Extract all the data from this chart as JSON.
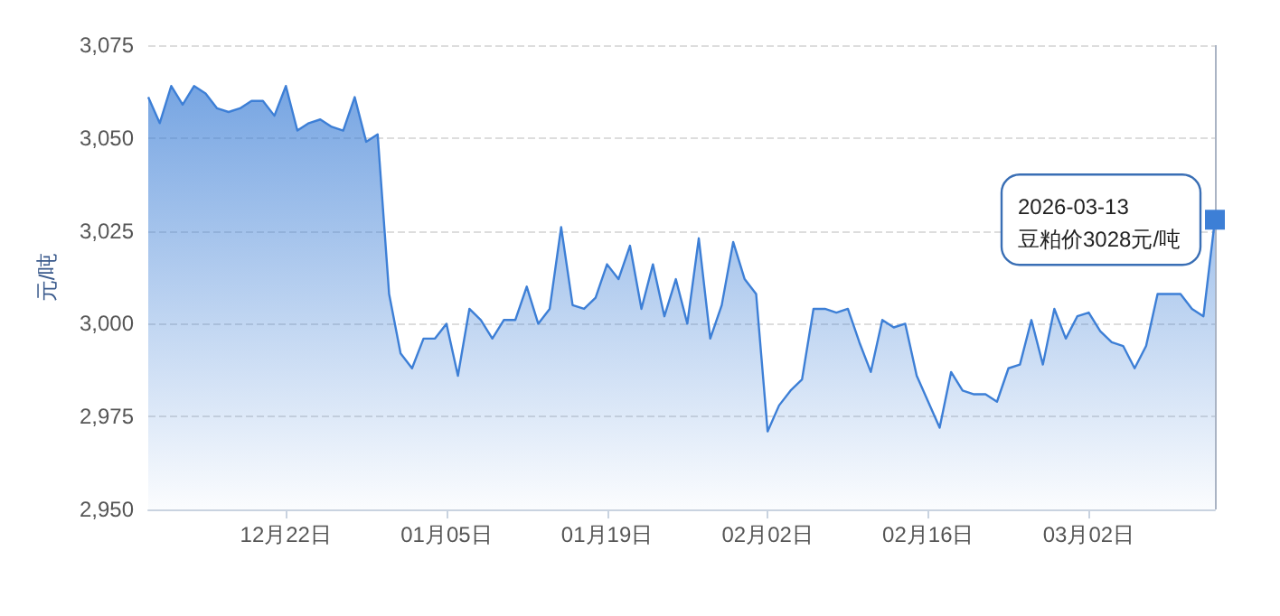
{
  "chart_data": {
    "type": "area",
    "ylabel": "元/吨",
    "x": [
      "2025-12-10",
      "2025-12-11",
      "2025-12-12",
      "2025-12-13",
      "2025-12-14",
      "2025-12-15",
      "2025-12-16",
      "2025-12-17",
      "2025-12-18",
      "2025-12-19",
      "2025-12-20",
      "2025-12-21",
      "2025-12-22",
      "2025-12-23",
      "2025-12-24",
      "2025-12-25",
      "2025-12-26",
      "2025-12-27",
      "2025-12-28",
      "2025-12-29",
      "2025-12-30",
      "2025-12-31",
      "2026-01-01",
      "2026-01-02",
      "2026-01-03",
      "2026-01-04",
      "2026-01-05",
      "2026-01-06",
      "2026-01-07",
      "2026-01-08",
      "2026-01-09",
      "2026-01-10",
      "2026-01-11",
      "2026-01-12",
      "2026-01-13",
      "2026-01-14",
      "2026-01-15",
      "2026-01-16",
      "2026-01-17",
      "2026-01-18",
      "2026-01-19",
      "2026-01-20",
      "2026-01-21",
      "2026-01-22",
      "2026-01-23",
      "2026-01-24",
      "2026-01-25",
      "2026-01-26",
      "2026-01-27",
      "2026-01-28",
      "2026-01-29",
      "2026-01-30",
      "2026-01-31",
      "2026-02-01",
      "2026-02-02",
      "2026-02-03",
      "2026-02-04",
      "2026-02-05",
      "2026-02-06",
      "2026-02-07",
      "2026-02-08",
      "2026-02-09",
      "2026-02-10",
      "2026-02-11",
      "2026-02-12",
      "2026-02-13",
      "2026-02-14",
      "2026-02-15",
      "2026-02-16",
      "2026-02-17",
      "2026-02-18",
      "2026-02-19",
      "2026-02-20",
      "2026-02-21",
      "2026-02-22",
      "2026-02-23",
      "2026-02-24",
      "2026-02-25",
      "2026-02-26",
      "2026-02-27",
      "2026-02-28",
      "2026-03-01",
      "2026-03-02",
      "2026-03-03",
      "2026-03-04",
      "2026-03-05",
      "2026-03-06",
      "2026-03-07",
      "2026-03-08",
      "2026-03-09",
      "2026-03-10",
      "2026-03-11",
      "2026-03-12",
      "2026-03-13"
    ],
    "series": [
      {
        "color": "#3d7fd6",
        "values": [
          3061,
          3054,
          3064,
          3059,
          3064,
          3062,
          3058,
          3057,
          3058,
          3060,
          3060,
          3056,
          3064,
          3052,
          3054,
          3055,
          3053,
          3052,
          3061,
          3049,
          3051,
          3008,
          2992,
          2988,
          2996,
          2996,
          3000,
          2986,
          3004,
          3001,
          2996,
          3001,
          3001,
          3010,
          3000,
          3004,
          3026,
          3005,
          3004,
          3007,
          3016,
          3012,
          3021,
          3004,
          3016,
          3002,
          3012,
          3000,
          3023,
          2996,
          3005,
          3022,
          3012,
          3008,
          2971,
          2978,
          2982,
          2985,
          3004,
          3004,
          3003,
          3004,
          2995,
          2987,
          3001,
          2999,
          3000,
          2986,
          2979,
          2972,
          2987,
          2982,
          2981,
          2981,
          2979,
          2988,
          2989,
          3001,
          2989,
          3004,
          2996,
          3002,
          3003,
          2998,
          2995,
          2994,
          2988,
          2994,
          3008,
          3008,
          3008,
          3004,
          3002,
          3028
        ]
      }
    ],
    "xlim": [
      "2025-12-10",
      "2026-03-13"
    ],
    "xticks": [
      {
        "value": "2025-12-22",
        "label": "12月22日"
      },
      {
        "value": "2026-01-05",
        "label": "01月05日"
      },
      {
        "value": "2026-01-19",
        "label": "01月19日"
      },
      {
        "value": "2026-02-02",
        "label": "02月02日"
      },
      {
        "value": "2026-02-16",
        "label": "02月16日"
      },
      {
        "value": "2026-03-02",
        "label": "03月02日"
      }
    ],
    "ylim": [
      2950,
      3075
    ],
    "yticks": [
      {
        "value": 2950,
        "label": "2,950"
      },
      {
        "value": 2975,
        "label": "2,975"
      },
      {
        "value": 3000,
        "label": "3,000"
      },
      {
        "value": 3025,
        "label": "3,025"
      },
      {
        "value": 3050,
        "label": "3,050"
      },
      {
        "value": 3075,
        "label": "3,075"
      }
    ],
    "grid": "y",
    "annotations": [
      {
        "text": "2026-03-13\n豆粕价3028元/吨",
        "x": "2026-03-13",
        "y": 3028
      }
    ]
  }
}
